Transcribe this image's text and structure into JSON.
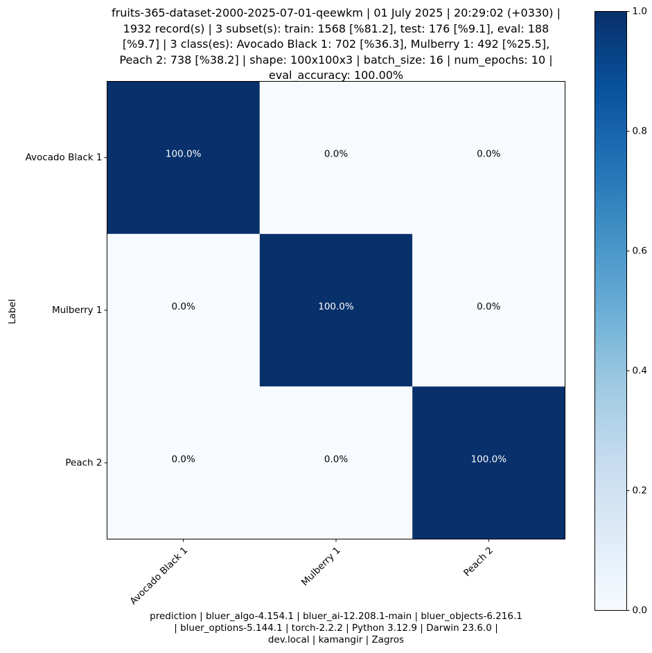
{
  "chart_data": {
    "type": "heatmap",
    "title": "fruits-365-dataset-2000-2025-07-01-qeewkm | 01 July 2025 | 20:29:02 (+0330) |\n1932 record(s) | 3 subset(s): train: 1568 [%81.2], test: 176 [%9.1], eval: 188\n[%9.7] | 3 class(es): Avocado Black 1: 702 [%36.3], Mulberry 1: 492 [%25.5],\nPeach 2: 738 [%38.2] | shape: 100x100x3 | batch_size: 16 | num_epochs: 10 |\neval_accuracy: 100.00%",
    "ylabel": "Label",
    "xlabel": "",
    "row_labels": [
      "Avocado Black 1",
      "Mulberry 1",
      "Peach 2"
    ],
    "col_labels": [
      "Avocado Black 1",
      "Mulberry 1",
      "Peach 2"
    ],
    "values": [
      [
        1.0,
        0.0,
        0.0
      ],
      [
        0.0,
        1.0,
        0.0
      ],
      [
        0.0,
        0.0,
        1.0
      ]
    ],
    "cell_labels": [
      [
        "100.0%",
        "0.0%",
        "0.0%"
      ],
      [
        "0.0%",
        "100.0%",
        "0.0%"
      ],
      [
        "0.0%",
        "0.0%",
        "100.0%"
      ]
    ],
    "colormap": "Blues",
    "color_low": "#f7fbff",
    "color_high": "#08306b",
    "colorbar": {
      "range": [
        0.0,
        1.0
      ],
      "ticks": [
        0.0,
        0.2,
        0.4,
        0.6,
        0.8,
        1.0
      ],
      "tick_labels": [
        "0.0",
        "0.2",
        "0.4",
        "0.6",
        "0.8",
        "1.0"
      ]
    },
    "footer": "prediction | bluer_algo-4.154.1 | bluer_ai-12.208.1-main | bluer_objects-6.216.1\n| bluer_options-5.144.1 | torch-2.2.2 | Python 3.12.9 | Darwin 23.6.0 |\ndev.local | kamangir | Zagros"
  }
}
